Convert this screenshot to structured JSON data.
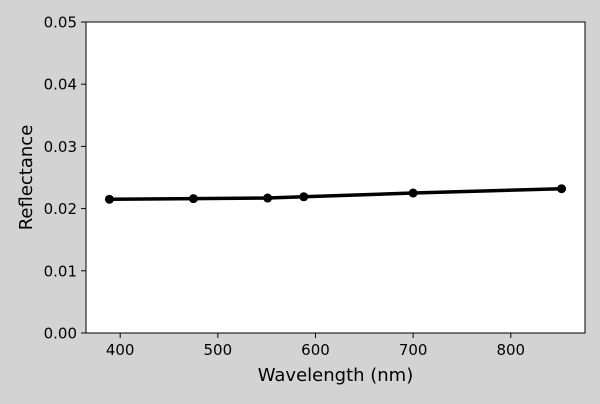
{
  "chart_data": {
    "type": "line",
    "title": "",
    "xlabel": "Wavelength (nm)",
    "ylabel": "Reflectance",
    "xlim": [
      365,
      876
    ],
    "ylim": [
      0.0,
      0.05
    ],
    "xticks": [
      400,
      500,
      600,
      700,
      800
    ],
    "xtick_labels": [
      "400",
      "500",
      "600",
      "700",
      "800"
    ],
    "yticks": [
      0.0,
      0.01,
      0.02,
      0.03,
      0.04,
      0.05
    ],
    "ytick_labels": [
      "0.00",
      "0.01",
      "0.02",
      "0.03",
      "0.04",
      "0.05"
    ],
    "grid": false,
    "legend": false,
    "series": [
      {
        "x": [
          389,
          475,
          551,
          588,
          700,
          852
        ],
        "y": [
          0.0215,
          0.0216,
          0.0217,
          0.0219,
          0.0225,
          0.0232
        ],
        "color": "#000000",
        "marker": "circle"
      }
    ]
  },
  "colors": {
    "figure_background": "#d3d3d3",
    "plot_background": "#ffffff",
    "axis": "#000000",
    "line": "#000000"
  }
}
